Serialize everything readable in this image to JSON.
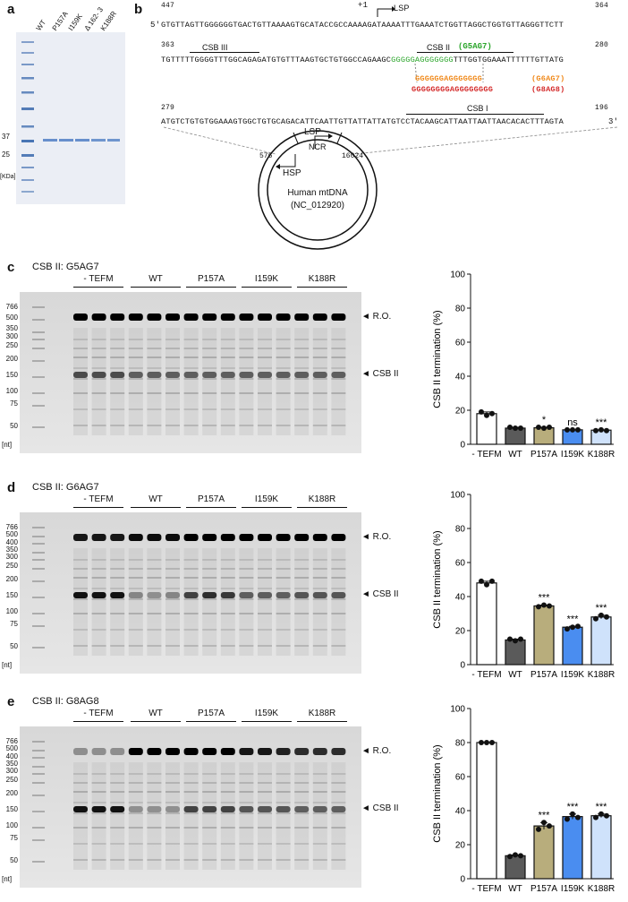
{
  "panel_a": {
    "letter": "a",
    "lanes": [
      "WT",
      "P157A",
      "I159K",
      "Δ 162- 3",
      "K188R"
    ],
    "markers": [
      "37",
      "25"
    ],
    "unit": "[KDa]"
  },
  "panel_b": {
    "letter": "b",
    "num_447": "447",
    "num_364": "364",
    "line1": "GTGTTAGTTGGGGGGTGACTGTTAAAAGTGCATACCGCCAAAAGATAAAATTTGAAATCTGGTTAGGCTGGTGTTAGGGTTCTT",
    "plus1": "+1",
    "lsp_top": "LSP",
    "five_prime": "5'",
    "three_prime": "3'",
    "num_363": "363",
    "num_280": "280",
    "csb3": "CSB III",
    "csb2": "CSB II",
    "csb2_g5": "(G5AG7)",
    "line2a": "TGTTTTTGGGGTTTGGCAGAGATGTGTTTAAGTGCTGTGGCCAGAAGC",
    "line2g": "GGGGGAGGGGGGG",
    "line2b": "TTTGGTGGAAATTTTTTGTTATG",
    "g6_seq": "GGGGGGAGGGGGGG",
    "g6_label": "(G6AG7)",
    "g8_seq": "GGGGGGGGAGGGGGGGG",
    "g8_label": "(G8AG8)",
    "num_279": "279",
    "num_196": "196",
    "csb1": "CSB I",
    "line3": "ATGTCTGTGTGGAAAGTGGCTGTGCAGACATTCAATTGTTATTATTATGTCCTACAAGCATTAATTAATTAACACACTTTAGTA",
    "circle_lsp": "LSP",
    "circle_hsp": "HSP",
    "pos_576": "576",
    "pos_16024": "16024",
    "ncr": "NCR",
    "mtdna_line1": "Human mtDNA",
    "mtdna_line2": "(NC_012920)"
  },
  "gel_panels": [
    {
      "letter": "c",
      "title": "CSB II:  G5AG7",
      "groups": [
        "- TEFM",
        "WT",
        "P157A",
        "I159K",
        "K188R"
      ],
      "markers": [
        "766",
        "500",
        "350",
        "300",
        "250",
        "200",
        "150",
        "100",
        "75",
        "50"
      ],
      "unit": "[nt]",
      "ro_label": "R.O.",
      "csb_label": "CSB II"
    },
    {
      "letter": "d",
      "title": "CSB II:  G6AG7",
      "groups": [
        "- TEFM",
        "WT",
        "P157A",
        "I159K",
        "K188R"
      ],
      "markers": [
        "766",
        "500",
        "400",
        "350",
        "300",
        "250",
        "200",
        "150",
        "100",
        "75",
        "50"
      ],
      "unit": "[nt]",
      "ro_label": "R.O.",
      "csb_label": "CSB II"
    },
    {
      "letter": "e",
      "title": "CSB II:  G8AG8",
      "groups": [
        "- TEFM",
        "WT",
        "P157A",
        "I159K",
        "K188R"
      ],
      "markers": [
        "766",
        "500",
        "400",
        "350",
        "300",
        "250",
        "200",
        "150",
        "100",
        "75",
        "50"
      ],
      "unit": "[nt]",
      "ro_label": "R.O.",
      "csb_label": "CSB II"
    }
  ],
  "chart_data": [
    {
      "type": "bar",
      "categories": [
        "- TEFM",
        "WT",
        "P157A",
        "I159K",
        "K188R"
      ],
      "values": [
        18,
        9.5,
        9.7,
        8.5,
        8.3
      ],
      "points": [
        [
          19,
          17,
          18
        ],
        [
          10,
          9.5,
          9.5
        ],
        [
          10,
          9.5,
          10
        ],
        [
          8.5,
          8.5,
          8.5
        ],
        [
          8,
          8.5,
          8
        ]
      ],
      "significance": [
        "",
        "",
        "*",
        "ns",
        "***"
      ],
      "colors": [
        "#ffffff",
        "#5a5a5a",
        "#b8ad7c",
        "#4a8df0",
        "#cfe2fb"
      ],
      "ylabel": "CSB II termination (%)",
      "ylim": [
        0,
        100
      ],
      "yticks": [
        0,
        20,
        40,
        60,
        80,
        100
      ]
    },
    {
      "type": "bar",
      "categories": [
        "- TEFM",
        "WT",
        "P157A",
        "I159K",
        "K188R"
      ],
      "values": [
        48,
        14.5,
        34.5,
        22,
        28
      ],
      "points": [
        [
          49,
          47,
          49
        ],
        [
          15,
          14,
          15
        ],
        [
          34,
          35,
          34.5
        ],
        [
          21,
          22,
          22.5
        ],
        [
          27,
          29,
          28
        ]
      ],
      "significance": [
        "",
        "",
        "***",
        "***",
        "***"
      ],
      "colors": [
        "#ffffff",
        "#5a5a5a",
        "#b8ad7c",
        "#4a8df0",
        "#cfe2fb"
      ],
      "ylabel": "CSB II termination (%)",
      "ylim": [
        0,
        100
      ],
      "yticks": [
        0,
        20,
        40,
        60,
        80,
        100
      ]
    },
    {
      "type": "bar",
      "categories": [
        "- TEFM",
        "WT",
        "P157A",
        "I159K",
        "K188R"
      ],
      "values": [
        80,
        13.5,
        31,
        36.5,
        37
      ],
      "points": [
        [
          80,
          80,
          80
        ],
        [
          13,
          14,
          13.5
        ],
        [
          29,
          33,
          31
        ],
        [
          35,
          38,
          36
        ],
        [
          36,
          38,
          37
        ]
      ],
      "significance": [
        "",
        "",
        "***",
        "***",
        "***"
      ],
      "colors": [
        "#ffffff",
        "#5a5a5a",
        "#b8ad7c",
        "#4a8df0",
        "#cfe2fb"
      ],
      "ylabel": "CSB II termination (%)",
      "ylim": [
        0,
        100
      ],
      "yticks": [
        0,
        20,
        40,
        60,
        80,
        100
      ]
    }
  ]
}
